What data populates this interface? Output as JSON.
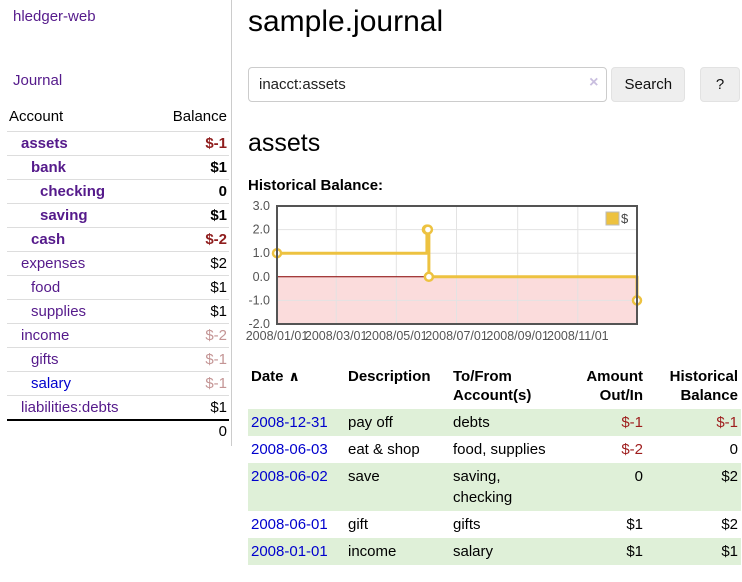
{
  "app": {
    "title": "hledger-web"
  },
  "nav": {
    "journal": "Journal"
  },
  "sidebar": {
    "account_header": "Account",
    "balance_header": "Balance",
    "rows": [
      {
        "name": "assets",
        "indent": 1,
        "balance": "$-1",
        "bold": true,
        "neg": "strong",
        "link": "purple"
      },
      {
        "name": "bank",
        "indent": 2,
        "balance": "$1",
        "bold": true,
        "neg": "none",
        "link": "purple"
      },
      {
        "name": "checking",
        "indent": 3,
        "balance": "0",
        "bold": true,
        "neg": "none",
        "link": "purple"
      },
      {
        "name": "saving",
        "indent": 3,
        "balance": "$1",
        "bold": true,
        "neg": "none",
        "link": "purple"
      },
      {
        "name": "cash",
        "indent": 2,
        "balance": "$-2",
        "bold": true,
        "neg": "strong",
        "link": "purple"
      },
      {
        "name": "expenses",
        "indent": 1,
        "balance": "$2",
        "bold": false,
        "neg": "none",
        "link": "purple"
      },
      {
        "name": "food",
        "indent": 2,
        "balance": "$1",
        "bold": false,
        "neg": "none",
        "link": "purple"
      },
      {
        "name": "supplies",
        "indent": 2,
        "balance": "$1",
        "bold": false,
        "neg": "none",
        "link": "purple"
      },
      {
        "name": "income",
        "indent": 1,
        "balance": "$-2",
        "bold": false,
        "neg": "faded",
        "link": "purple"
      },
      {
        "name": "gifts",
        "indent": 2,
        "balance": "$-1",
        "bold": false,
        "neg": "faded",
        "link": "purple"
      },
      {
        "name": "salary",
        "indent": 2,
        "balance": "$-1",
        "bold": false,
        "neg": "faded",
        "link": "blue"
      },
      {
        "name": "liabilities:debts",
        "indent": 1,
        "balance": "$1",
        "bold": false,
        "neg": "none",
        "link": "purple"
      }
    ],
    "total": "0"
  },
  "main": {
    "title": "sample.journal",
    "search": {
      "value": "inacct:assets",
      "clear_icon": "×",
      "search_button": "Search",
      "help_button": "?"
    },
    "account_heading": "assets",
    "chart_label": "Historical Balance:"
  },
  "chart_data": {
    "type": "line",
    "step": true,
    "title": "Historical Balance",
    "legend": "$",
    "x_range": [
      "2008/01/01",
      "2008/12/31"
    ],
    "ylim": [
      -2.0,
      3.0
    ],
    "yticks": [
      3.0,
      2.0,
      1.0,
      0.0,
      -1.0,
      -2.0
    ],
    "xticks": [
      "2008/01/01",
      "2008/03/01",
      "2008/05/01",
      "2008/07/01",
      "2008/09/01",
      "2008/11/01"
    ],
    "points": [
      {
        "date": "2008/01/01",
        "value": 1.0
      },
      {
        "date": "2008/06/01",
        "value": 2.0
      },
      {
        "date": "2008/06/02",
        "value": 2.0
      },
      {
        "date": "2008/06/03",
        "value": 0.0
      },
      {
        "date": "2008/12/31",
        "value": -1.0
      }
    ],
    "colors": {
      "series": "#edc240",
      "marker_fill": "#ffffff",
      "negative_region": "#fbdcdc",
      "zero_line": "#8b0000",
      "grid": "#e3e3e3",
      "border": "#545454",
      "tick_label": "#545454",
      "legend_text": "#444444",
      "legend_box_border": "#bbbbbb"
    }
  },
  "register": {
    "headers": {
      "date": "Date",
      "sort_indicator": "∧",
      "description": "Description",
      "accounts": "To/From Account(s)",
      "amount": "Amount Out/In",
      "balance": "Historical Balance"
    },
    "rows": [
      {
        "date": "2008-12-31",
        "description": "pay off",
        "accounts": "debts",
        "amount": "$-1",
        "balance": "$-1",
        "amount_neg": true,
        "balance_neg": true,
        "shaded": true
      },
      {
        "date": "2008-06-03",
        "description": "eat & shop",
        "accounts": "food, supplies",
        "amount": "$-2",
        "balance": "0",
        "amount_neg": true,
        "balance_neg": false,
        "shaded": false
      },
      {
        "date": "2008-06-02",
        "description": "save",
        "accounts": "saving, checking",
        "amount": "0",
        "balance": "$2",
        "amount_neg": false,
        "balance_neg": false,
        "shaded": true
      },
      {
        "date": "2008-06-01",
        "description": "gift",
        "accounts": "gifts",
        "amount": "$1",
        "balance": "$2",
        "amount_neg": false,
        "balance_neg": false,
        "shaded": false
      },
      {
        "date": "2008-01-01",
        "description": "income",
        "accounts": "salary",
        "amount": "$1",
        "balance": "$1",
        "amount_neg": false,
        "balance_neg": false,
        "shaded": true
      }
    ]
  },
  "colors": {
    "link_purple": "#551a8b",
    "link_blue": "#0000cd",
    "negative_strong": "#8f1d1d",
    "negative_faded": "#c49595",
    "register_negative": "#9e1c1c",
    "row_shaded": "#dff0d8",
    "series_gold": "#edc240"
  }
}
